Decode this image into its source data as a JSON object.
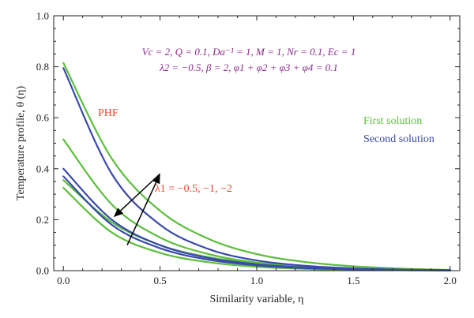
{
  "chart_data": {
    "type": "line",
    "xlabel": "Similarity variable, η",
    "ylabel": "Temperature profile, θ (η)",
    "xlim": [
      -0.05,
      2.05
    ],
    "ylim": [
      0.0,
      1.0
    ],
    "xticks": [
      "0.0",
      "0.5",
      "1.0",
      "1.5",
      "2.0"
    ],
    "yticks": [
      "0.0",
      "0.2",
      "0.4",
      "0.6",
      "0.8",
      "1.0"
    ],
    "params_line1": "Vc = 2, Q = 0.1, Da⁻¹ = 1, M = 1, Nr = 0.1, Ec = 1",
    "params_line2": "λ2 = −0.5, β = 2, φ1 + φ2 + φ3 + φ4 = 0.1",
    "annotation_phf": "PHF",
    "annotation_lambda": "λ1 = −0.5, −1, −2",
    "legend": [
      {
        "label": "First solution",
        "color": "#5cbf3c"
      },
      {
        "label": "Second solution",
        "color": "#3a4aa8"
      }
    ],
    "series": [
      {
        "group": "First solution",
        "color": "#5cbf3c",
        "x": [
          0,
          0.25,
          0.5,
          0.75,
          1.0,
          1.25,
          1.5,
          1.75,
          2.0
        ],
        "y": [
          0.815,
          0.44,
          0.235,
          0.125,
          0.065,
          0.034,
          0.017,
          0.008,
          0.003
        ]
      },
      {
        "group": "First solution",
        "color": "#5cbf3c",
        "x": [
          0,
          0.25,
          0.5,
          0.75,
          1.0,
          1.25,
          1.5,
          1.75,
          2.0
        ],
        "y": [
          0.515,
          0.26,
          0.13,
          0.065,
          0.032,
          0.016,
          0.008,
          0.004,
          0.002
        ]
      },
      {
        "group": "First solution",
        "color": "#5cbf3c",
        "x": [
          0,
          0.25,
          0.5,
          0.75,
          1.0,
          1.25,
          1.5,
          1.75,
          2.0
        ],
        "y": [
          0.355,
          0.19,
          0.1,
          0.053,
          0.028,
          0.014,
          0.007,
          0.003,
          0.001
        ]
      },
      {
        "group": "First solution",
        "color": "#5cbf3c",
        "x": [
          0,
          0.25,
          0.5,
          0.75,
          1.0,
          1.25,
          1.5,
          1.75,
          2.0
        ],
        "y": [
          0.325,
          0.15,
          0.07,
          0.033,
          0.015,
          0.007,
          0.003,
          0.002,
          0.001
        ]
      },
      {
        "group": "Second solution",
        "color": "#3a4aa8",
        "x": [
          0,
          0.25,
          0.5,
          0.75,
          1.0,
          1.25,
          1.5,
          1.75,
          2.0
        ],
        "y": [
          0.795,
          0.38,
          0.18,
          0.085,
          0.04,
          0.019,
          0.009,
          0.004,
          0.002
        ]
      },
      {
        "group": "Second solution",
        "color": "#3a4aa8",
        "x": [
          0,
          0.25,
          0.5,
          0.75,
          1.0,
          1.25,
          1.5,
          1.75,
          2.0
        ],
        "y": [
          0.4,
          0.2,
          0.1,
          0.05,
          0.025,
          0.012,
          0.006,
          0.003,
          0.001
        ]
      },
      {
        "group": "Second solution",
        "color": "#3a4aa8",
        "x": [
          0,
          0.25,
          0.5,
          0.75,
          1.0,
          1.25,
          1.5,
          1.75,
          2.0
        ],
        "y": [
          0.37,
          0.18,
          0.088,
          0.043,
          0.021,
          0.01,
          0.005,
          0.002,
          0.001
        ]
      }
    ],
    "arrows": [
      {
        "x1": 0.5,
        "y1": 0.38,
        "x2": 0.26,
        "y2": 0.21
      },
      {
        "x1": 0.33,
        "y1": 0.1,
        "x2": 0.5,
        "y2": 0.38
      }
    ],
    "colors": {
      "params": "#8a2a8a",
      "phf": "#e8482a",
      "lambda": "#e8482a",
      "axis": "#222222",
      "arrow": "#000000"
    },
    "grid": false,
    "legend_position": "right"
  }
}
